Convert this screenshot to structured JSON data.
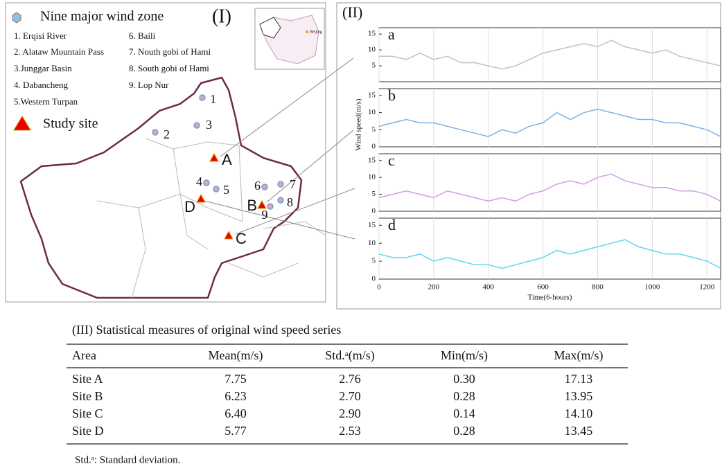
{
  "map": {
    "panel_label": "(I)",
    "legend_title": "Nine major wind zone",
    "zones": [
      "1. Erqisi River",
      "2. Alataw Mountain Pass",
      "3.Junggar Basin",
      "4. Dabancheng",
      "5.Western Turpan",
      "6. Baili",
      "7. Nouth gobi of Hami",
      "8. South gobi of Hami",
      "9. Lop Nur"
    ],
    "study_site_label": "Study site",
    "zone_markers": [
      "1",
      "2",
      "3",
      "4",
      "5",
      "6",
      "7",
      "8",
      "9"
    ],
    "site_markers": [
      "A",
      "B",
      "C",
      "D"
    ],
    "inset_label": "Beijing"
  },
  "panel_ii_label": "(II)",
  "chart_data": [
    {
      "type": "line",
      "title": "a",
      "x": [
        0,
        50,
        100,
        150,
        200,
        250,
        300,
        350,
        400,
        450,
        500,
        550,
        600,
        650,
        700,
        750,
        800,
        850,
        900,
        950,
        1000,
        1050,
        1100,
        1150,
        1200,
        1250
      ],
      "series": [
        {
          "name": "a",
          "color": "#c9c0b5",
          "values": [
            8,
            8,
            7,
            9,
            7,
            8,
            6,
            6,
            5,
            4,
            5,
            7,
            9,
            10,
            11,
            12,
            11,
            13,
            11,
            10,
            9,
            10,
            8,
            7,
            6,
            5
          ]
        }
      ],
      "xlim": [
        0,
        1250
      ],
      "xticks": [
        0,
        200,
        400,
        600,
        800,
        1000,
        1200
      ],
      "ylim": [
        0,
        17
      ],
      "yticks": [
        5,
        10,
        15
      ],
      "grid": true
    },
    {
      "type": "line",
      "title": "b",
      "y_label": "Wind speed(m/s)",
      "x": [
        0,
        50,
        100,
        150,
        200,
        250,
        300,
        350,
        400,
        450,
        500,
        550,
        600,
        650,
        700,
        750,
        800,
        850,
        900,
        950,
        1000,
        1050,
        1100,
        1150,
        1200,
        1250
      ],
      "series": [
        {
          "name": "b",
          "color": "#7db1e6",
          "values": [
            6,
            7,
            8,
            7,
            7,
            6,
            5,
            4,
            3,
            5,
            4,
            6,
            7,
            10,
            8,
            10,
            11,
            10,
            9,
            8,
            8,
            7,
            7,
            6,
            5,
            3
          ]
        }
      ],
      "xlim": [
        0,
        1250
      ],
      "xticks": [
        0,
        200,
        400,
        600,
        800,
        1000,
        1200
      ],
      "ylim": [
        0,
        17
      ],
      "yticks": [
        0,
        5,
        10,
        15
      ],
      "grid": true
    },
    {
      "type": "line",
      "title": "c",
      "x": [
        0,
        50,
        100,
        150,
        200,
        250,
        300,
        350,
        400,
        450,
        500,
        550,
        600,
        650,
        700,
        750,
        800,
        850,
        900,
        950,
        1000,
        1050,
        1100,
        1150,
        1200,
        1250
      ],
      "series": [
        {
          "name": "c",
          "color": "#d29ce6",
          "values": [
            4,
            5,
            6,
            5,
            4,
            6,
            5,
            4,
            3,
            4,
            3,
            5,
            6,
            8,
            9,
            8,
            10,
            11,
            9,
            8,
            7,
            7,
            6,
            6,
            5,
            3
          ]
        }
      ],
      "xlim": [
        0,
        1250
      ],
      "xticks": [
        0,
        200,
        400,
        600,
        800,
        1000,
        1200
      ],
      "ylim": [
        0,
        17
      ],
      "yticks": [
        0,
        5,
        10,
        15
      ],
      "grid": true
    },
    {
      "type": "line",
      "title": "d",
      "x_label": "Time(6-hours)",
      "x": [
        0,
        50,
        100,
        150,
        200,
        250,
        300,
        350,
        400,
        450,
        500,
        550,
        600,
        650,
        700,
        750,
        800,
        850,
        900,
        950,
        1000,
        1050,
        1100,
        1150,
        1200,
        1250
      ],
      "series": [
        {
          "name": "d",
          "color": "#5ed7ea",
          "values": [
            7,
            6,
            6,
            7,
            5,
            6,
            5,
            4,
            4,
            3,
            4,
            5,
            6,
            8,
            7,
            8,
            9,
            10,
            11,
            9,
            8,
            7,
            7,
            6,
            5,
            3
          ]
        }
      ],
      "xlim": [
        0,
        1250
      ],
      "xticks": [
        0,
        200,
        400,
        600,
        800,
        1000,
        1200
      ],
      "ylim": [
        0,
        17
      ],
      "yticks": [
        0,
        5,
        10,
        15
      ],
      "grid": true
    }
  ],
  "table": {
    "title": "(III) Statistical measures of original wind speed series",
    "header": [
      "Area",
      "Mean(m/s)",
      "Std.ᵃ(m/s)",
      "Min(m/s)",
      "Max(m/s)"
    ],
    "rows": [
      [
        "Site A",
        "7.75",
        "2.76",
        "0.30",
        "17.13"
      ],
      [
        "Site B",
        "6.23",
        "2.70",
        "0.28",
        "13.95"
      ],
      [
        "Site C",
        "6.40",
        "2.90",
        "0.14",
        "14.10"
      ],
      [
        "Site D",
        "5.77",
        "2.53",
        "0.28",
        "13.45"
      ]
    ],
    "footnote": "Std.ᵃ: Standard deviation."
  }
}
